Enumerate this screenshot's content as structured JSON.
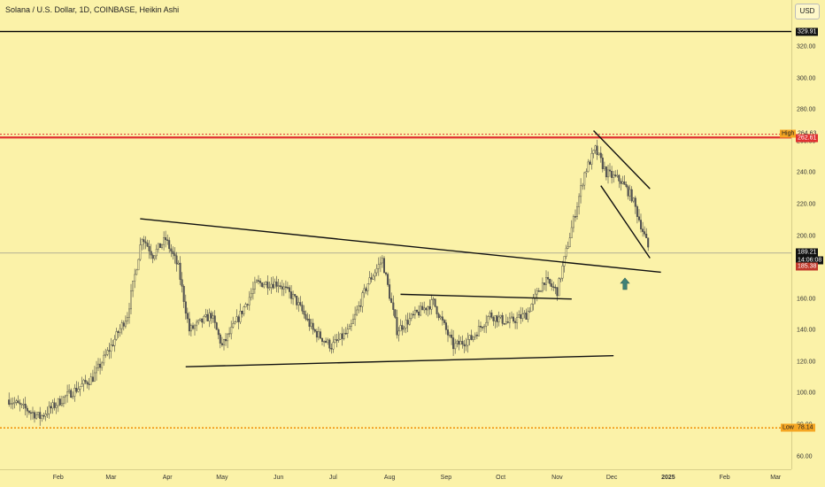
{
  "title": "Solana / U.S. Dollar, 1D, COINBASE, Heikin Ashi",
  "currency": "USD",
  "colors": {
    "background": "#fbf2a8",
    "up": "#555555",
    "down": "#555555",
    "trendline": "#111111",
    "resistance": "#e03131",
    "low_line": "#f08c00",
    "arrow": "#3f8277"
  },
  "chart_data": {
    "type": "candlestick",
    "symbol": "Solana / U.S. Dollar",
    "interval": "1D",
    "exchange": "COINBASE",
    "style": "Heikin Ashi",
    "y_ticks": [
      "60.00",
      "80.00",
      "100.00",
      "120.00",
      "140.00",
      "160.00",
      "180.00",
      "200.00",
      "220.00",
      "240.00",
      "260.00",
      "280.00",
      "300.00",
      "320.00"
    ],
    "x_ticks": [
      "Feb",
      "Mar",
      "Apr",
      "May",
      "Jun",
      "Jul",
      "Aug",
      "Sep",
      "Oct",
      "Nov",
      "Dec",
      "2025",
      "Feb",
      "Mar"
    ],
    "ylim": [
      55,
      333
    ],
    "price_path": [
      [
        "2024-01-05",
        96
      ],
      [
        "2024-01-22",
        85
      ],
      [
        "2024-02-05",
        98
      ],
      [
        "2024-02-20",
        110
      ],
      [
        "2024-03-01",
        130
      ],
      [
        "2024-03-10",
        150
      ],
      [
        "2024-03-18",
        200
      ],
      [
        "2024-03-24",
        188
      ],
      [
        "2024-03-31",
        198
      ],
      [
        "2024-04-07",
        180
      ],
      [
        "2024-04-13",
        140
      ],
      [
        "2024-04-25",
        150
      ],
      [
        "2024-05-01",
        130
      ],
      [
        "2024-05-10",
        148
      ],
      [
        "2024-05-20",
        170
      ],
      [
        "2024-06-01",
        170
      ],
      [
        "2024-06-10",
        160
      ],
      [
        "2024-06-20",
        140
      ],
      [
        "2024-06-30",
        130
      ],
      [
        "2024-07-05",
        135
      ],
      [
        "2024-07-10",
        140
      ],
      [
        "2024-07-20",
        170
      ],
      [
        "2024-07-28",
        185
      ],
      [
        "2024-08-05",
        140
      ],
      [
        "2024-08-15",
        150
      ],
      [
        "2024-08-25",
        158
      ],
      [
        "2024-09-05",
        130
      ],
      [
        "2024-09-15",
        135
      ],
      [
        "2024-09-25",
        150
      ],
      [
        "2024-10-05",
        145
      ],
      [
        "2024-10-15",
        150
      ],
      [
        "2024-10-25",
        172
      ],
      [
        "2024-11-01",
        165
      ],
      [
        "2024-11-07",
        195
      ],
      [
        "2024-11-16",
        240
      ],
      [
        "2024-11-22",
        255
      ],
      [
        "2024-11-28",
        240
      ],
      [
        "2024-12-06",
        235
      ],
      [
        "2024-12-12",
        225
      ],
      [
        "2024-12-19",
        200
      ],
      [
        "2024-12-22",
        189.21
      ]
    ],
    "horizontal_levels": [
      {
        "price": 329.91,
        "label": "329.91",
        "style": "solid"
      },
      {
        "price": 262.61,
        "label": "262.61",
        "style": "solid"
      },
      {
        "price": 264.63,
        "label": "High",
        "value_label": "264.63",
        "style": "dotted"
      },
      {
        "price": 78.14,
        "label": "Low",
        "value_label": "78.14",
        "style": "dotted"
      }
    ],
    "trendlines": [
      {
        "from": [
          "2024-03-17",
          211
        ],
        "to": [
          "2024-12-28",
          177
        ]
      },
      {
        "from": [
          "2024-04-11",
          117
        ],
        "to": [
          "2024-12-02",
          124
        ]
      },
      {
        "from": [
          "2024-08-07",
          163
        ],
        "to": [
          "2024-11-09",
          160
        ]
      },
      {
        "from": [
          "2024-11-21",
          267
        ],
        "to": [
          "2024-12-22",
          230
        ]
      },
      {
        "from": [
          "2024-11-25",
          232
        ],
        "to": [
          "2024-12-22",
          186
        ]
      }
    ],
    "last_price": {
      "value": "189.21",
      "countdown": "14:06:08",
      "prev": "185.38"
    },
    "annotation": "up-arrow"
  }
}
